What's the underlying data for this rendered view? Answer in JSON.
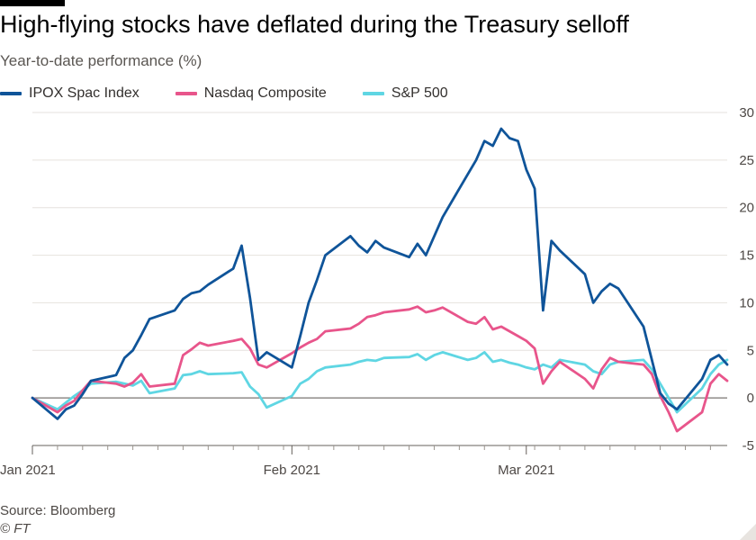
{
  "header": {
    "title": "High-flying stocks have deflated during the Treasury selloff",
    "subtitle": "Year-to-date performance (%)"
  },
  "footer": {
    "source": "Source: Bloomberg",
    "copyright": "© FT"
  },
  "chart_data": {
    "type": "line",
    "title": "High-flying stocks have deflated during the Treasury selloff",
    "subtitle": "Year-to-date performance (%)",
    "xlabel": "",
    "ylabel": "",
    "x_axis": {
      "type": "date",
      "range": [
        "2021-01-01",
        "2021-03-25"
      ],
      "tick_labels": [
        {
          "date": "2021-01-01",
          "label": "Jan 2021"
        },
        {
          "date": "2021-02-01",
          "label": "Feb 2021"
        },
        {
          "date": "2021-03-01",
          "label": "Mar 2021"
        }
      ]
    },
    "y_axis": {
      "range": [
        -5,
        30
      ],
      "ticks": [
        -5,
        0,
        5,
        10,
        15,
        20,
        25,
        30
      ],
      "position": "right"
    },
    "grid": {
      "horizontal": true,
      "vertical": false
    },
    "legend_placement": "top-left",
    "series": [
      {
        "name": "IPOX Spac Index",
        "color": "#0f5499",
        "points": [
          [
            "2021-01-01",
            0
          ],
          [
            "2021-01-04",
            -2.2
          ],
          [
            "2021-01-05",
            -1.2
          ],
          [
            "2021-01-06",
            -0.8
          ],
          [
            "2021-01-07",
            0.4
          ],
          [
            "2021-01-08",
            1.8
          ],
          [
            "2021-01-11",
            2.4
          ],
          [
            "2021-01-12",
            4.2
          ],
          [
            "2021-01-13",
            5.0
          ],
          [
            "2021-01-14",
            6.6
          ],
          [
            "2021-01-15",
            8.3
          ],
          [
            "2021-01-18",
            9.2
          ],
          [
            "2021-01-19",
            10.4
          ],
          [
            "2021-01-20",
            11.0
          ],
          [
            "2021-01-21",
            11.2
          ],
          [
            "2021-01-22",
            11.9
          ],
          [
            "2021-01-25",
            13.6
          ],
          [
            "2021-01-26",
            16.0
          ],
          [
            "2021-01-27",
            10.5
          ],
          [
            "2021-01-28",
            4.0
          ],
          [
            "2021-01-29",
            4.8
          ],
          [
            "2021-02-01",
            3.2
          ],
          [
            "2021-02-02",
            6.5
          ],
          [
            "2021-02-03",
            10.0
          ],
          [
            "2021-02-04",
            12.4
          ],
          [
            "2021-02-05",
            15.0
          ],
          [
            "2021-02-08",
            17.0
          ],
          [
            "2021-02-09",
            16.0
          ],
          [
            "2021-02-10",
            15.3
          ],
          [
            "2021-02-11",
            16.5
          ],
          [
            "2021-02-12",
            15.8
          ],
          [
            "2021-02-15",
            14.8
          ],
          [
            "2021-02-16",
            16.2
          ],
          [
            "2021-02-17",
            15.0
          ],
          [
            "2021-02-18",
            17.0
          ],
          [
            "2021-02-19",
            19.0
          ],
          [
            "2021-02-22",
            23.5
          ],
          [
            "2021-02-23",
            25.0
          ],
          [
            "2021-02-24",
            27.0
          ],
          [
            "2021-02-25",
            26.5
          ],
          [
            "2021-02-26",
            28.3
          ],
          [
            "2021-02-27",
            27.3
          ],
          [
            "2021-02-28",
            27.0
          ],
          [
            "2021-03-01",
            24.0
          ],
          [
            "2021-03-02",
            22.0
          ],
          [
            "2021-03-03",
            9.2
          ],
          [
            "2021-03-04",
            16.5
          ],
          [
            "2021-03-05",
            15.5
          ],
          [
            "2021-03-08",
            13.0
          ],
          [
            "2021-03-09",
            10.0
          ],
          [
            "2021-03-10",
            11.2
          ],
          [
            "2021-03-11",
            12.0
          ],
          [
            "2021-03-12",
            11.5
          ],
          [
            "2021-03-15",
            7.5
          ],
          [
            "2021-03-16",
            4.0
          ],
          [
            "2021-03-17",
            0.5
          ],
          [
            "2021-03-18",
            -0.6
          ],
          [
            "2021-03-19",
            -1.2
          ],
          [
            "2021-03-22",
            2.0
          ],
          [
            "2021-03-23",
            4.0
          ],
          [
            "2021-03-24",
            4.5
          ],
          [
            "2021-03-25",
            3.5
          ]
        ]
      },
      {
        "name": "Nasdaq Composite",
        "color": "#e8558b",
        "points": [
          [
            "2021-01-01",
            0
          ],
          [
            "2021-01-04",
            -1.5
          ],
          [
            "2021-01-05",
            -0.8
          ],
          [
            "2021-01-06",
            -0.3
          ],
          [
            "2021-01-07",
            0.8
          ],
          [
            "2021-01-08",
            1.8
          ],
          [
            "2021-01-11",
            1.5
          ],
          [
            "2021-01-12",
            1.2
          ],
          [
            "2021-01-13",
            1.6
          ],
          [
            "2021-01-14",
            2.5
          ],
          [
            "2021-01-15",
            1.2
          ],
          [
            "2021-01-18",
            1.5
          ],
          [
            "2021-01-19",
            4.5
          ],
          [
            "2021-01-20",
            5.1
          ],
          [
            "2021-01-21",
            5.8
          ],
          [
            "2021-01-22",
            5.5
          ],
          [
            "2021-01-25",
            6.0
          ],
          [
            "2021-01-26",
            6.2
          ],
          [
            "2021-01-27",
            5.2
          ],
          [
            "2021-01-28",
            3.5
          ],
          [
            "2021-01-29",
            3.2
          ],
          [
            "2021-02-01",
            4.7
          ],
          [
            "2021-02-02",
            5.3
          ],
          [
            "2021-02-03",
            5.8
          ],
          [
            "2021-02-04",
            6.2
          ],
          [
            "2021-02-05",
            7.0
          ],
          [
            "2021-02-08",
            7.3
          ],
          [
            "2021-02-09",
            7.8
          ],
          [
            "2021-02-10",
            8.5
          ],
          [
            "2021-02-11",
            8.7
          ],
          [
            "2021-02-12",
            9.0
          ],
          [
            "2021-02-15",
            9.3
          ],
          [
            "2021-02-16",
            9.6
          ],
          [
            "2021-02-17",
            9.0
          ],
          [
            "2021-02-18",
            9.2
          ],
          [
            "2021-02-19",
            9.5
          ],
          [
            "2021-02-22",
            8.0
          ],
          [
            "2021-02-23",
            7.8
          ],
          [
            "2021-02-24",
            8.5
          ],
          [
            "2021-02-25",
            7.2
          ],
          [
            "2021-02-26",
            7.5
          ],
          [
            "2021-02-27",
            7.0
          ],
          [
            "2021-02-28",
            6.5
          ],
          [
            "2021-03-01",
            6.0
          ],
          [
            "2021-03-02",
            5.2
          ],
          [
            "2021-03-03",
            1.5
          ],
          [
            "2021-03-04",
            2.8
          ],
          [
            "2021-03-05",
            3.8
          ],
          [
            "2021-03-08",
            2.0
          ],
          [
            "2021-03-09",
            1.0
          ],
          [
            "2021-03-10",
            3.0
          ],
          [
            "2021-03-11",
            4.2
          ],
          [
            "2021-03-12",
            3.8
          ],
          [
            "2021-03-15",
            3.5
          ],
          [
            "2021-03-16",
            2.5
          ],
          [
            "2021-03-17",
            0.2
          ],
          [
            "2021-03-18",
            -1.5
          ],
          [
            "2021-03-19",
            -3.5
          ],
          [
            "2021-03-22",
            -1.5
          ],
          [
            "2021-03-23",
            1.5
          ],
          [
            "2021-03-24",
            2.5
          ],
          [
            "2021-03-25",
            1.8
          ]
        ]
      },
      {
        "name": "S&P 500",
        "color": "#5fd6e3",
        "points": [
          [
            "2021-01-01",
            0
          ],
          [
            "2021-01-04",
            -1.2
          ],
          [
            "2021-01-05",
            -0.5
          ],
          [
            "2021-01-06",
            0.2
          ],
          [
            "2021-01-07",
            0.8
          ],
          [
            "2021-01-08",
            1.5
          ],
          [
            "2021-01-11",
            1.7
          ],
          [
            "2021-01-12",
            1.5
          ],
          [
            "2021-01-13",
            1.3
          ],
          [
            "2021-01-14",
            1.8
          ],
          [
            "2021-01-15",
            0.5
          ],
          [
            "2021-01-18",
            1.0
          ],
          [
            "2021-01-19",
            2.4
          ],
          [
            "2021-01-20",
            2.5
          ],
          [
            "2021-01-21",
            2.8
          ],
          [
            "2021-01-22",
            2.5
          ],
          [
            "2021-01-25",
            2.6
          ],
          [
            "2021-01-26",
            2.7
          ],
          [
            "2021-01-27",
            1.2
          ],
          [
            "2021-01-28",
            0.4
          ],
          [
            "2021-01-29",
            -1.0
          ],
          [
            "2021-02-01",
            0.2
          ],
          [
            "2021-02-02",
            1.5
          ],
          [
            "2021-02-03",
            2.0
          ],
          [
            "2021-02-04",
            2.8
          ],
          [
            "2021-02-05",
            3.2
          ],
          [
            "2021-02-08",
            3.5
          ],
          [
            "2021-02-09",
            3.8
          ],
          [
            "2021-02-10",
            4.0
          ],
          [
            "2021-02-11",
            3.9
          ],
          [
            "2021-02-12",
            4.2
          ],
          [
            "2021-02-15",
            4.3
          ],
          [
            "2021-02-16",
            4.6
          ],
          [
            "2021-02-17",
            4.0
          ],
          [
            "2021-02-18",
            4.5
          ],
          [
            "2021-02-19",
            4.8
          ],
          [
            "2021-02-22",
            4.0
          ],
          [
            "2021-02-23",
            4.2
          ],
          [
            "2021-02-24",
            4.8
          ],
          [
            "2021-02-25",
            3.8
          ],
          [
            "2021-02-26",
            4.0
          ],
          [
            "2021-02-27",
            3.7
          ],
          [
            "2021-02-28",
            3.5
          ],
          [
            "2021-03-01",
            3.2
          ],
          [
            "2021-03-02",
            3.0
          ],
          [
            "2021-03-03",
            3.5
          ],
          [
            "2021-03-04",
            3.2
          ],
          [
            "2021-03-05",
            4.0
          ],
          [
            "2021-03-08",
            3.5
          ],
          [
            "2021-03-09",
            2.8
          ],
          [
            "2021-03-10",
            2.5
          ],
          [
            "2021-03-11",
            3.5
          ],
          [
            "2021-03-12",
            3.8
          ],
          [
            "2021-03-15",
            4.0
          ],
          [
            "2021-03-16",
            3.0
          ],
          [
            "2021-03-17",
            1.5
          ],
          [
            "2021-03-18",
            0.0
          ],
          [
            "2021-03-19",
            -1.5
          ],
          [
            "2021-03-22",
            1.0
          ],
          [
            "2021-03-23",
            2.5
          ],
          [
            "2021-03-24",
            3.5
          ],
          [
            "2021-03-25",
            4.0
          ]
        ]
      }
    ]
  }
}
